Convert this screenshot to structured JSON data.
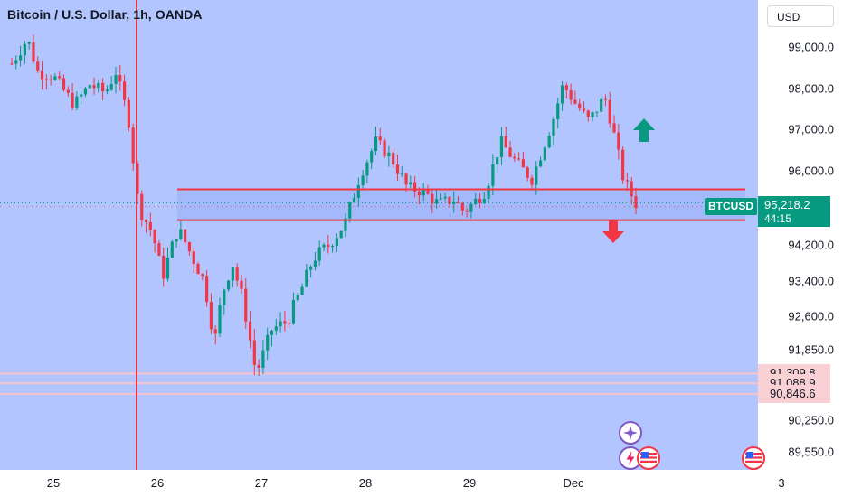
{
  "header": {
    "title": "Bitcoin / U.S. Dollar, 1h, OANDA"
  },
  "currency_button": {
    "label": "USD"
  },
  "ticker": {
    "symbol": "BTCUSD",
    "last_price": "95,218.2",
    "countdown": "44:15"
  },
  "colors": {
    "background": "#b3c5fe",
    "candle_up": "#089981",
    "candle_down": "#f23645",
    "level_line": "#f23645",
    "zone_fill": "#9fb4fb",
    "support_line": "#f9c4c9"
  },
  "icons": {
    "up_arrow": "up-arrow-icon",
    "down_arrow": "down-arrow-icon",
    "event_star": "star-event-icon",
    "event_flash": "flash-event-icon",
    "event_flag": "us-flag-icon"
  },
  "chart_data": {
    "type": "candlestick",
    "title": "Bitcoin / U.S. Dollar, 1h, OANDA",
    "y_ticks": [
      "99,000.0",
      "98,000.0",
      "97,000.0",
      "96,000.0",
      "94,200.0",
      "93,400.0",
      "92,600.0",
      "91,850.0",
      "90,250.0",
      "89,550.0"
    ],
    "y_tick_values": [
      99000,
      98000,
      97000,
      96000,
      94200,
      93400,
      92600,
      91850,
      90250,
      89550
    ],
    "x_ticks": [
      "25",
      "26",
      "27",
      "28",
      "29",
      "Dec",
      "3"
    ],
    "x_tick_days": [
      25,
      26,
      27,
      28,
      29,
      30,
      32
    ],
    "resistance_levels": [
      95550,
      94800
    ],
    "support_levels": [
      {
        "value": 91309.8,
        "label": "91,309.8"
      },
      {
        "value": 91088.9,
        "label": "91,088.9"
      },
      {
        "value": 90846.6,
        "label": "90,846.6"
      }
    ],
    "vertical_marker_day": 25.8,
    "last_price": 95218.2,
    "current_day": 30.6,
    "path_days": [
      24.6,
      24.75,
      24.85,
      25.0,
      25.2,
      25.35,
      25.5,
      25.6,
      25.72,
      25.82,
      25.95,
      26.05,
      26.2,
      26.3,
      26.45,
      26.55,
      26.62,
      26.72,
      26.82,
      26.95,
      27.1,
      27.25,
      27.4,
      27.5,
      27.65,
      27.8,
      27.95,
      28.1,
      28.25,
      28.4,
      28.55,
      28.7,
      28.85,
      28.95,
      29.15,
      29.3,
      29.45,
      29.6,
      29.7,
      29.8,
      29.9,
      30.0,
      30.15,
      30.3,
      30.38,
      30.48,
      30.6
    ],
    "path_prices": [
      98600,
      99200,
      98400,
      98300,
      97600,
      98100,
      97900,
      98400,
      97300,
      95100,
      94500,
      93500,
      94600,
      94100,
      93400,
      92000,
      93100,
      93800,
      93000,
      91300,
      92300,
      92500,
      93300,
      93900,
      94200,
      94700,
      95900,
      96700,
      96300,
      95600,
      95500,
      95200,
      95300,
      95000,
      95500,
      96700,
      96200,
      95800,
      96500,
      97200,
      98100,
      97700,
      97200,
      97800,
      97000,
      95800,
      95200
    ]
  }
}
